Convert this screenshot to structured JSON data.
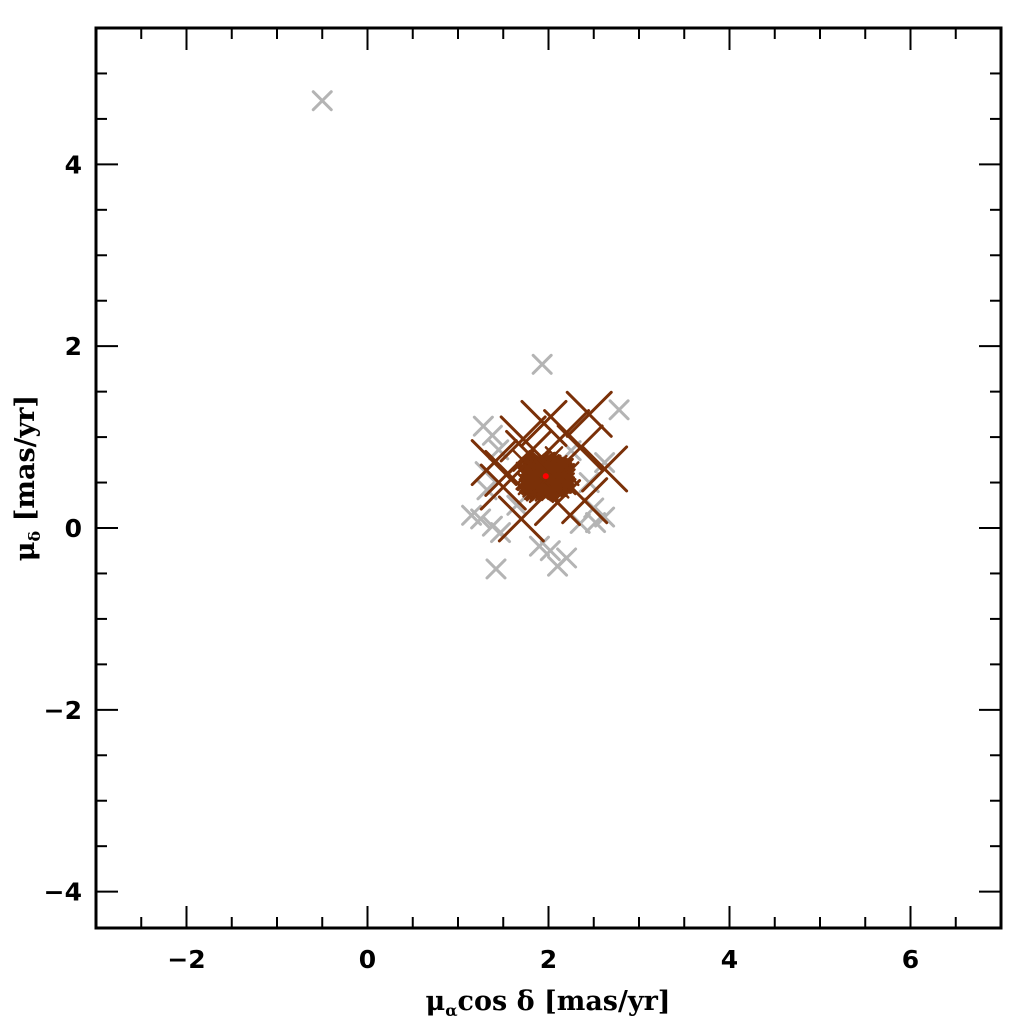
{
  "chart_data": {
    "type": "scatter",
    "xlabel": {
      "mu": "μ",
      "sub": "α",
      "rest": "cos δ [mas/yr]"
    },
    "ylabel": {
      "mu": "μ",
      "sub": "δ",
      "rest": " [mas/yr]"
    },
    "xlim": [
      -3,
      7
    ],
    "ylim": [
      -4.4,
      5.5
    ],
    "x_ticks": [
      -2,
      0,
      2,
      4,
      6
    ],
    "x_tick_labels": [
      "−2",
      "0",
      "2",
      "4",
      "6"
    ],
    "y_ticks": [
      -4,
      -2,
      0,
      2,
      4
    ],
    "y_tick_labels": [
      "−4",
      "−2",
      "0",
      "2",
      "4"
    ],
    "grid": false,
    "colors": {
      "field": "#b4b4b4",
      "members": "#7a3008",
      "center": "#ff0000",
      "axes": "#000000"
    },
    "series": [
      {
        "marker": "x-cross",
        "color": "#b4b4b4",
        "points": [
          {
            "x": -0.5,
            "y": 4.7
          },
          {
            "x": 1.93,
            "y": 1.8
          },
          {
            "x": 2.78,
            "y": 1.3
          },
          {
            "x": 1.28,
            "y": 1.12
          },
          {
            "x": 1.38,
            "y": 1.02
          },
          {
            "x": 1.45,
            "y": 0.86
          },
          {
            "x": 1.3,
            "y": 0.62
          },
          {
            "x": 1.32,
            "y": 0.42
          },
          {
            "x": 1.15,
            "y": 0.14
          },
          {
            "x": 1.25,
            "y": 0.1
          },
          {
            "x": 1.38,
            "y": 0.02
          },
          {
            "x": 1.47,
            "y": -0.05
          },
          {
            "x": 1.42,
            "y": -0.45
          },
          {
            "x": 1.9,
            "y": -0.2
          },
          {
            "x": 2.02,
            "y": -0.25
          },
          {
            "x": 2.1,
            "y": -0.42
          },
          {
            "x": 2.2,
            "y": -0.33
          },
          {
            "x": 2.35,
            "y": 0.05
          },
          {
            "x": 2.52,
            "y": 0.06
          },
          {
            "x": 2.62,
            "y": 0.12
          },
          {
            "x": 2.5,
            "y": 0.22
          },
          {
            "x": 2.62,
            "y": 0.72
          },
          {
            "x": 2.45,
            "y": 0.5
          },
          {
            "x": 1.65,
            "y": 0.25
          },
          {
            "x": 2.25,
            "y": 0.85
          }
        ]
      },
      {
        "marker": "x-cross",
        "color": "#7a3008",
        "points": [
          {
            "x": 2.45,
            "y": 1.25
          },
          {
            "x": 1.95,
            "y": 1.15
          },
          {
            "x": 2.62,
            "y": 0.65
          },
          {
            "x": 1.4,
            "y": 0.72
          },
          {
            "x": 1.5,
            "y": 0.45
          },
          {
            "x": 1.7,
            "y": 0.1
          },
          {
            "x": 1.55,
            "y": 0.6
          },
          {
            "x": 2.2,
            "y": 1.05
          },
          {
            "x": 2.35,
            "y": 0.88
          },
          {
            "x": 1.72,
            "y": 0.98
          },
          {
            "x": 2.4,
            "y": 0.3
          },
          {
            "x": 2.1,
            "y": 0.28
          },
          {
            "x": 1.78,
            "y": 0.82
          }
        ]
      }
    ],
    "cluster_center": {
      "x": 1.97,
      "y": 0.57
    },
    "cluster_spread": {
      "sx": 0.22,
      "sy": 0.17
    }
  }
}
